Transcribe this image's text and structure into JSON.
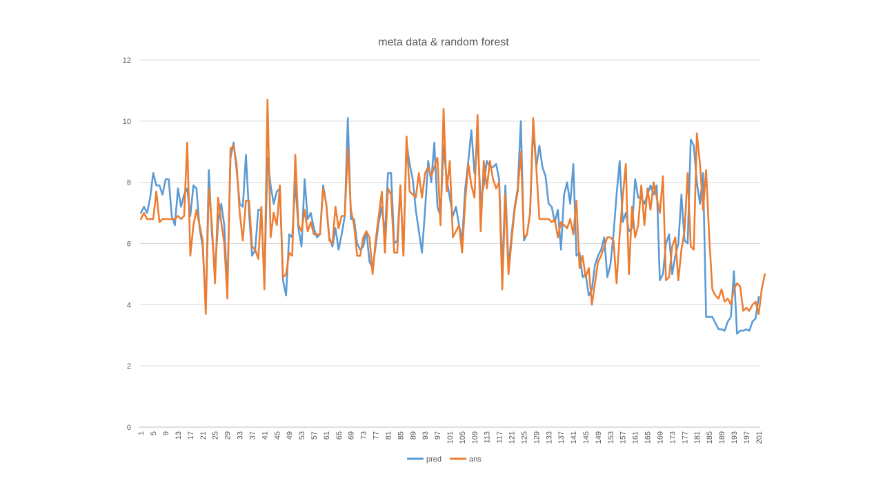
{
  "chart_data": {
    "type": "line",
    "title": "meta data & random forest",
    "xlabel": "",
    "ylabel": "",
    "ylim": [
      0,
      12
    ],
    "yticks": [
      0,
      2,
      4,
      6,
      8,
      10,
      12
    ],
    "grid": true,
    "legend_position": "bottom",
    "x_start": 1,
    "x_label_step": 4,
    "series": [
      {
        "name": "pred",
        "color": "#5b9bd5",
        "values": [
          7.0,
          7.2,
          7.0,
          7.5,
          8.3,
          7.9,
          7.9,
          7.6,
          8.1,
          8.1,
          6.9,
          6.6,
          7.8,
          7.2,
          7.6,
          7.8,
          6.9,
          7.9,
          7.8,
          6.5,
          5.9,
          3.9,
          8.4,
          6.3,
          5.1,
          6.7,
          7.3,
          6.6,
          4.5,
          8.8,
          9.3,
          8.4,
          7.3,
          7.2,
          8.9,
          7.0,
          5.6,
          5.8,
          7.1,
          7.1,
          4.7,
          8.8,
          7.9,
          7.3,
          7.7,
          7.8,
          4.8,
          4.3,
          6.3,
          6.2,
          8.0,
          6.5,
          5.9,
          8.1,
          6.8,
          7.0,
          6.5,
          6.2,
          6.3,
          7.9,
          7.3,
          6.2,
          5.9,
          6.5,
          5.8,
          6.3,
          6.9,
          10.1,
          6.8,
          6.8,
          6.0,
          5.8,
          5.9,
          6.4,
          5.4,
          5.2,
          5.9,
          6.7,
          7.2,
          6.3,
          8.3,
          8.3,
          6.0,
          6.1,
          7.9,
          5.6,
          9.3,
          8.6,
          8.1,
          7.1,
          6.4,
          5.7,
          7.1,
          8.7,
          8.0,
          9.3,
          7.2,
          6.9,
          9.2,
          8.1,
          7.5,
          6.9,
          7.2,
          6.6,
          6.1,
          7.8,
          8.7,
          9.7,
          8.3,
          9.4,
          7.4,
          7.9,
          8.7,
          8.5,
          8.5,
          8.6,
          8.1,
          5.1,
          7.9,
          5.2,
          6.3,
          7.2,
          7.8,
          10.0,
          6.1,
          6.3,
          7.0,
          9.8,
          8.5,
          9.2,
          8.5,
          8.2,
          7.3,
          7.2,
          6.7,
          7.1,
          5.8,
          7.6,
          8.0,
          7.3,
          8.6,
          5.6,
          5.7,
          4.9,
          5.0,
          4.3,
          4.5,
          5.3,
          5.6,
          5.8,
          6.2,
          4.9,
          5.3,
          6.3,
          7.6,
          8.7,
          6.7,
          7.0,
          6.4,
          6.5,
          8.1,
          7.5,
          7.5,
          7.3,
          7.6,
          7.9,
          7.6,
          7.9,
          4.8,
          5.0,
          6.0,
          6.3,
          5.0,
          5.6,
          6.0,
          7.6,
          6.1,
          6.0,
          9.4,
          9.2,
          8.0,
          7.3,
          8.3,
          3.6,
          3.6,
          3.6,
          3.4,
          3.2,
          3.2,
          3.15,
          3.45,
          3.6,
          5.1,
          3.05,
          3.15,
          3.15,
          3.2,
          3.15,
          3.45,
          3.55,
          4.25
        ]
      },
      {
        "name": "ans",
        "color": "#ed7d31",
        "values": [
          6.8,
          7.0,
          6.8,
          6.8,
          6.8,
          7.7,
          6.7,
          6.8,
          6.8,
          6.8,
          6.8,
          6.8,
          6.9,
          6.8,
          6.9,
          9.3,
          5.6,
          6.6,
          7.1,
          6.6,
          6.1,
          3.7,
          7.8,
          6.6,
          4.7,
          7.5,
          6.7,
          6.0,
          4.2,
          9.1,
          9.2,
          8.6,
          7.0,
          6.1,
          7.4,
          7.4,
          5.9,
          5.8,
          5.5,
          7.2,
          4.5,
          10.7,
          6.2,
          7.0,
          6.6,
          7.9,
          4.9,
          5.0,
          5.7,
          5.6,
          8.9,
          6.6,
          6.4,
          7.1,
          6.4,
          6.7,
          6.3,
          6.3,
          6.3,
          7.8,
          7.3,
          6.1,
          6.0,
          7.2,
          6.5,
          6.9,
          6.9,
          9.1,
          7.1,
          6.6,
          5.6,
          5.6,
          6.2,
          6.4,
          6.2,
          5.0,
          6.1,
          6.9,
          7.7,
          5.7,
          7.8,
          7.6,
          5.7,
          5.7,
          7.9,
          5.6,
          9.5,
          7.7,
          7.6,
          7.5,
          8.3,
          7.5,
          8.3,
          8.5,
          8.2,
          8.5,
          8.8,
          6.6,
          10.4,
          7.7,
          8.7,
          6.2,
          6.4,
          6.6,
          5.7,
          7.4,
          8.6,
          7.9,
          7.5,
          10.2,
          6.4,
          8.7,
          7.8,
          8.7,
          8.1,
          7.8,
          8.0,
          4.5,
          7.6,
          5.0,
          6.1,
          7.1,
          7.7,
          9.0,
          6.2,
          6.3,
          7.0,
          10.1,
          8.5,
          6.8,
          6.8,
          6.8,
          6.8,
          6.7,
          6.8,
          6.2,
          6.7,
          6.6,
          6.5,
          6.8,
          6.3,
          7.4,
          5.2,
          5.6,
          4.9,
          5.2,
          4.0,
          4.7,
          5.4,
          5.6,
          5.9,
          6.2,
          6.2,
          6.1,
          4.7,
          6.3,
          7.5,
          8.6,
          5.0,
          7.2,
          6.2,
          6.6,
          7.9,
          6.6,
          7.8,
          7.1,
          8.0,
          7.5,
          7.0,
          8.2,
          4.8,
          4.9,
          5.9,
          6.2,
          4.8,
          5.8,
          6.4,
          8.3,
          5.9,
          5.8,
          9.6,
          8.6,
          7.1,
          8.4,
          6.2,
          4.5,
          4.3,
          4.2,
          4.5,
          4.1,
          4.2,
          4.0,
          4.5,
          4.7,
          4.6,
          3.8,
          3.9,
          3.8,
          4.0,
          4.1,
          3.7,
          4.5,
          5.0
        ]
      }
    ]
  }
}
